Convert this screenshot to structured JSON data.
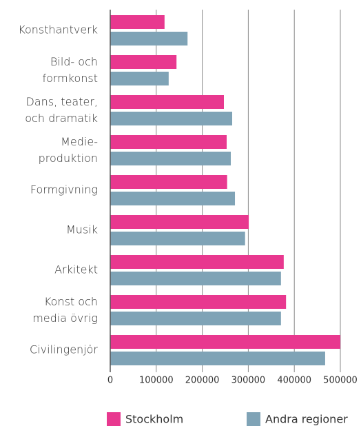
{
  "chart_data": {
    "type": "barh",
    "categories": [
      "Konsthantverk",
      "Bild- och\nformkonst",
      "Dans, teater,\noch dramatik",
      "Medie-\nproduktion",
      "Formgivning",
      "Musik",
      "Arkitekt",
      "Konst och\nmedia övrig",
      "Civilingenjör"
    ],
    "series": [
      {
        "name": "Stockholm",
        "color": "#e8388f",
        "values": [
          118000,
          144000,
          247000,
          253000,
          254000,
          301000,
          377000,
          382000,
          500000
        ]
      },
      {
        "name": "Andra regioner",
        "color": "#7fa3b6",
        "values": [
          168000,
          127000,
          265000,
          262000,
          271000,
          293000,
          371000,
          371000,
          467000
        ]
      }
    ],
    "xlim": [
      0,
      500000
    ],
    "xticks": [
      0,
      100000,
      200000,
      300000,
      400000,
      500000
    ],
    "grid": true,
    "legend": "bottom"
  }
}
